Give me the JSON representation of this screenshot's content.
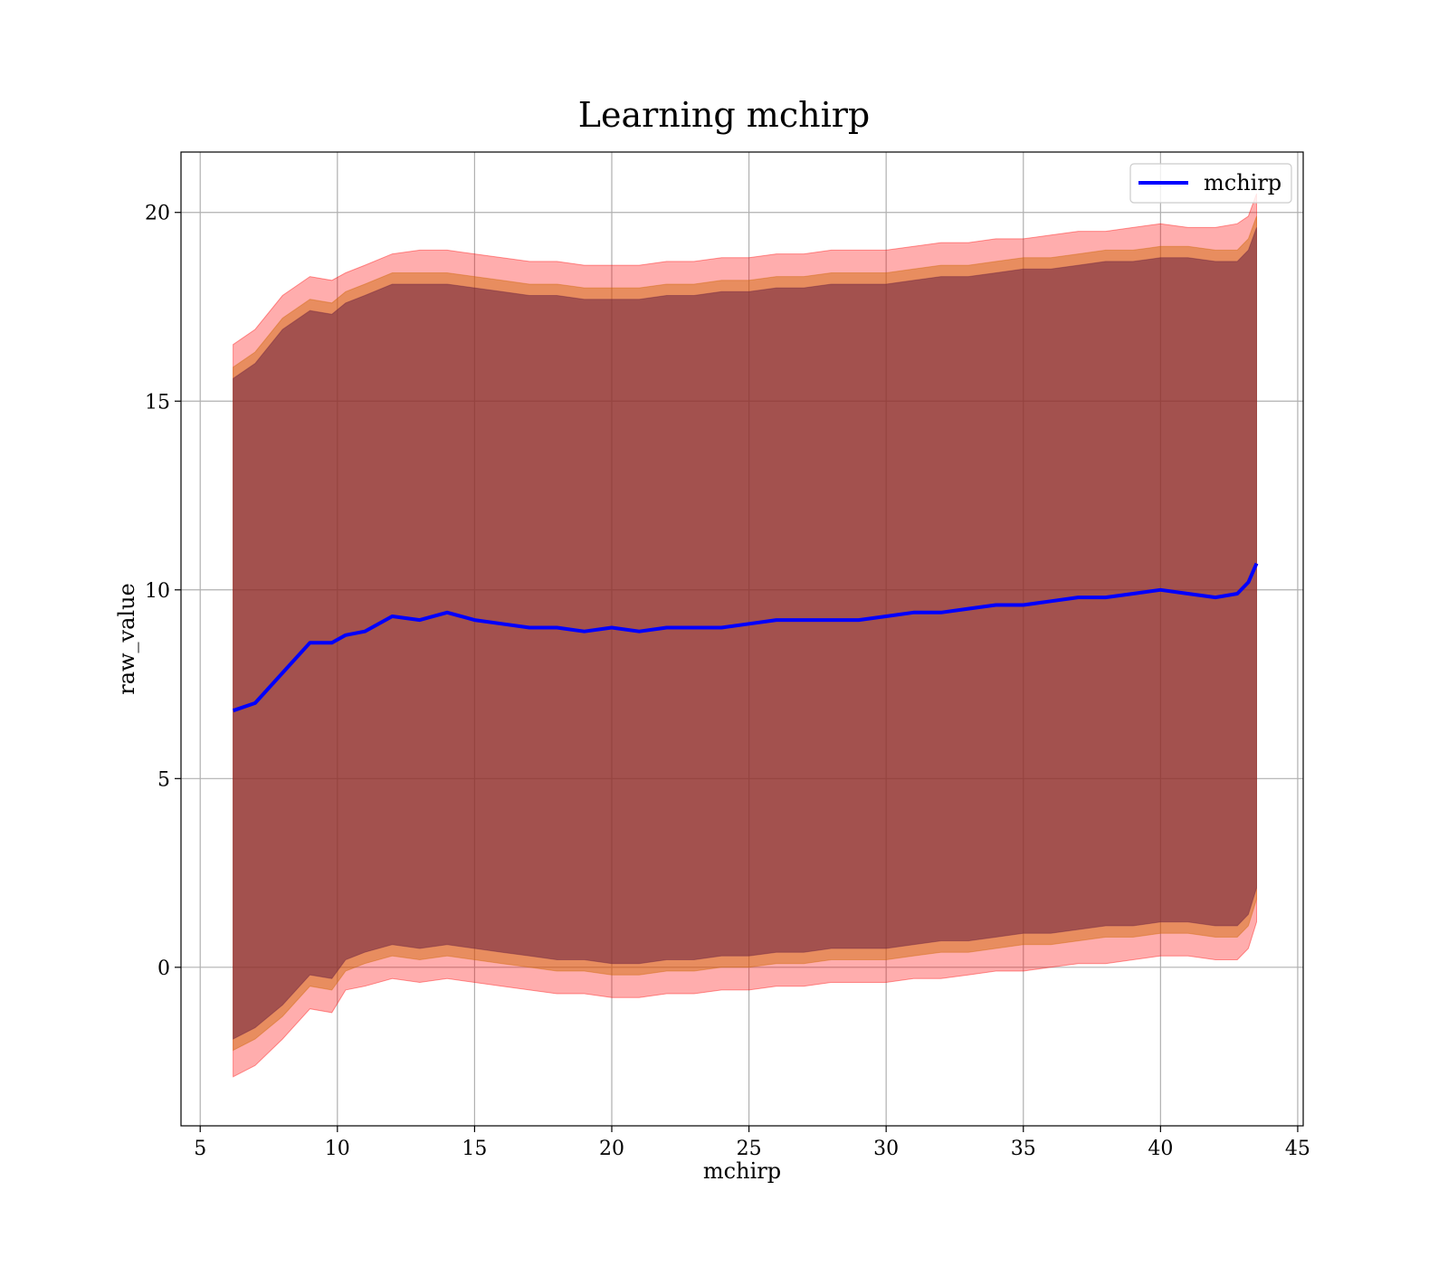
{
  "chart_data": {
    "type": "line",
    "title": "Learning mchirp",
    "xlabel": "mchirp",
    "ylabel": "raw_value",
    "xlim": [
      4.3,
      45.2
    ],
    "ylim": [
      -4.2,
      21.6
    ],
    "xticks": [
      5,
      10,
      15,
      20,
      25,
      30,
      35,
      40,
      45
    ],
    "yticks": [
      0,
      5,
      10,
      15,
      20
    ],
    "grid": true,
    "legend": {
      "entries": [
        "mchirp"
      ],
      "placement": "top-right"
    },
    "colors": {
      "line": "#0000ff",
      "outer_band": "#ff0000",
      "middle_band": "#cc6600",
      "inner_band": "#6a2040"
    },
    "series": [
      {
        "name": "mchirp",
        "x": [
          6.2,
          7,
          8,
          9,
          9.8,
          10.3,
          11,
          12,
          13,
          14,
          15,
          16,
          17,
          18,
          19,
          20,
          21,
          22,
          23,
          24,
          25,
          26,
          27,
          28,
          29,
          30,
          31,
          32,
          33,
          34,
          35,
          36,
          37,
          38,
          39,
          40,
          41,
          42,
          42.8,
          43.2,
          43.5
        ],
        "y": [
          6.8,
          7.0,
          7.8,
          8.6,
          8.6,
          8.8,
          8.9,
          9.3,
          9.2,
          9.4,
          9.2,
          9.1,
          9.0,
          9.0,
          8.9,
          9.0,
          8.9,
          9.0,
          9.0,
          9.0,
          9.1,
          9.2,
          9.2,
          9.2,
          9.2,
          9.3,
          9.4,
          9.4,
          9.5,
          9.6,
          9.6,
          9.7,
          9.8,
          9.8,
          9.9,
          10.0,
          9.9,
          9.8,
          9.9,
          10.2,
          10.7
        ]
      }
    ],
    "bands": [
      {
        "x": [
          6.2,
          7,
          8,
          9,
          9.8,
          10.3,
          11,
          12,
          13,
          14,
          15,
          16,
          17,
          18,
          19,
          20,
          21,
          22,
          23,
          24,
          25,
          26,
          27,
          28,
          29,
          30,
          31,
          32,
          33,
          34,
          35,
          36,
          37,
          38,
          39,
          40,
          41,
          42,
          42.8,
          43.2,
          43.5
        ],
        "upper": [
          16.5,
          16.9,
          17.8,
          18.3,
          18.2,
          18.4,
          18.6,
          18.9,
          19.0,
          19.0,
          18.9,
          18.8,
          18.7,
          18.7,
          18.6,
          18.6,
          18.6,
          18.7,
          18.7,
          18.8,
          18.8,
          18.9,
          18.9,
          19.0,
          19.0,
          19.0,
          19.1,
          19.2,
          19.2,
          19.3,
          19.3,
          19.4,
          19.5,
          19.5,
          19.6,
          19.7,
          19.6,
          19.6,
          19.7,
          19.9,
          20.5
        ],
        "lower": [
          -2.9,
          -2.6,
          -1.9,
          -1.1,
          -1.2,
          -0.6,
          -0.5,
          -0.3,
          -0.4,
          -0.3,
          -0.4,
          -0.5,
          -0.6,
          -0.7,
          -0.7,
          -0.8,
          -0.8,
          -0.7,
          -0.7,
          -0.6,
          -0.6,
          -0.5,
          -0.5,
          -0.4,
          -0.4,
          -0.4,
          -0.3,
          -0.3,
          -0.2,
          -0.1,
          -0.1,
          0.0,
          0.1,
          0.1,
          0.2,
          0.3,
          0.3,
          0.2,
          0.2,
          0.5,
          1.2
        ]
      },
      {
        "x": [
          6.2,
          7,
          8,
          9,
          9.8,
          10.3,
          11,
          12,
          13,
          14,
          15,
          16,
          17,
          18,
          19,
          20,
          21,
          22,
          23,
          24,
          25,
          26,
          27,
          28,
          29,
          30,
          31,
          32,
          33,
          34,
          35,
          36,
          37,
          38,
          39,
          40,
          41,
          42,
          42.8,
          43.2,
          43.5
        ],
        "upper": [
          15.9,
          16.3,
          17.2,
          17.7,
          17.6,
          17.9,
          18.1,
          18.4,
          18.4,
          18.4,
          18.3,
          18.2,
          18.1,
          18.1,
          18.0,
          18.0,
          18.0,
          18.1,
          18.1,
          18.2,
          18.2,
          18.3,
          18.3,
          18.4,
          18.4,
          18.4,
          18.5,
          18.6,
          18.6,
          18.7,
          18.8,
          18.8,
          18.9,
          19.0,
          19.0,
          19.1,
          19.1,
          19.0,
          19.0,
          19.3,
          19.9
        ],
        "lower": [
          -2.2,
          -1.9,
          -1.3,
          -0.5,
          -0.6,
          -0.1,
          0.1,
          0.3,
          0.2,
          0.3,
          0.2,
          0.1,
          0.0,
          -0.1,
          -0.1,
          -0.2,
          -0.2,
          -0.1,
          -0.1,
          0.0,
          0.0,
          0.1,
          0.1,
          0.2,
          0.2,
          0.2,
          0.3,
          0.4,
          0.4,
          0.5,
          0.6,
          0.6,
          0.7,
          0.8,
          0.8,
          0.9,
          0.9,
          0.8,
          0.8,
          1.1,
          1.8
        ]
      },
      {
        "x": [
          6.2,
          7,
          8,
          9,
          9.8,
          10.3,
          11,
          12,
          13,
          14,
          15,
          16,
          17,
          18,
          19,
          20,
          21,
          22,
          23,
          24,
          25,
          26,
          27,
          28,
          29,
          30,
          31,
          32,
          33,
          34,
          35,
          36,
          37,
          38,
          39,
          40,
          41,
          42,
          42.8,
          43.2,
          43.5
        ],
        "upper": [
          15.6,
          16.0,
          16.9,
          17.4,
          17.3,
          17.6,
          17.8,
          18.1,
          18.1,
          18.1,
          18.0,
          17.9,
          17.8,
          17.8,
          17.7,
          17.7,
          17.7,
          17.8,
          17.8,
          17.9,
          17.9,
          18.0,
          18.0,
          18.1,
          18.1,
          18.1,
          18.2,
          18.3,
          18.3,
          18.4,
          18.5,
          18.5,
          18.6,
          18.7,
          18.7,
          18.8,
          18.8,
          18.7,
          18.7,
          19.0,
          19.6
        ],
        "lower": [
          -1.9,
          -1.6,
          -1.0,
          -0.2,
          -0.3,
          0.2,
          0.4,
          0.6,
          0.5,
          0.6,
          0.5,
          0.4,
          0.3,
          0.2,
          0.2,
          0.1,
          0.1,
          0.2,
          0.2,
          0.3,
          0.3,
          0.4,
          0.4,
          0.5,
          0.5,
          0.5,
          0.6,
          0.7,
          0.7,
          0.8,
          0.9,
          0.9,
          1.0,
          1.1,
          1.1,
          1.2,
          1.2,
          1.1,
          1.1,
          1.4,
          2.1
        ]
      }
    ]
  }
}
